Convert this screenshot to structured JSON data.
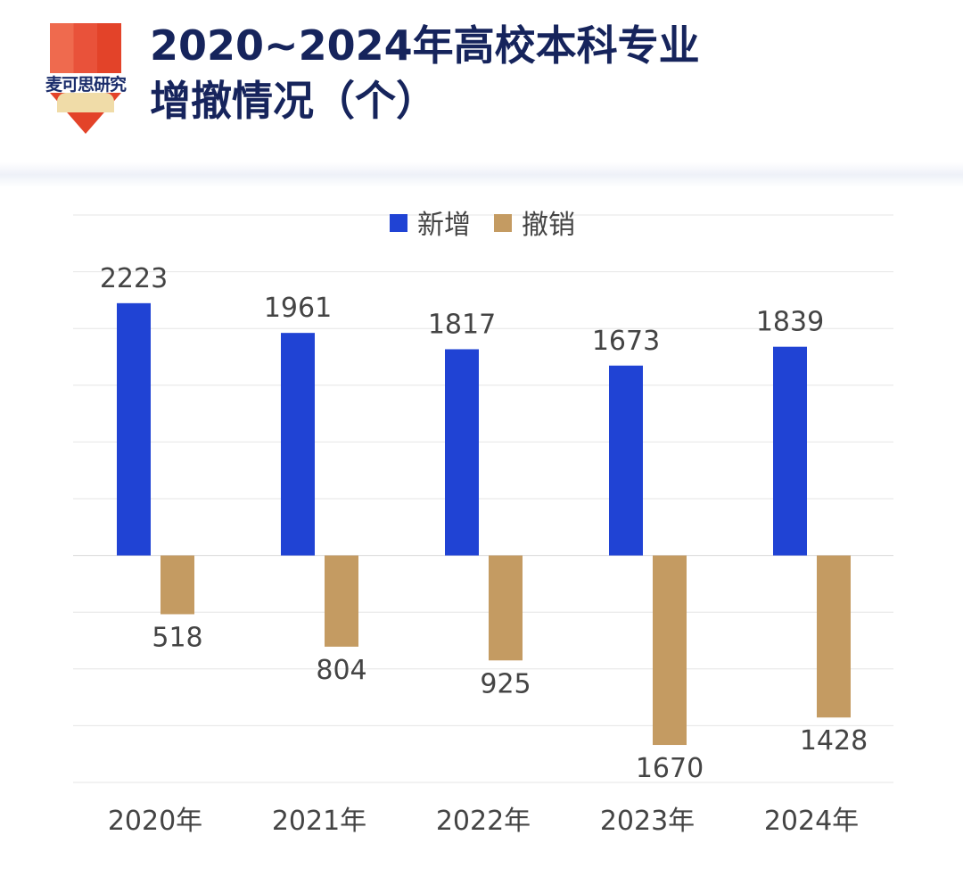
{
  "logo": {
    "text": "麦可思研究"
  },
  "header": {
    "title_line1": "2020~2024年高校本科专业",
    "title_line2": "增撤情况（个）"
  },
  "colors": {
    "added": "#2043d4",
    "removed": "#c49b62",
    "grid": "#e6e6e6",
    "title": "#16245c"
  },
  "chart_data": {
    "type": "bar",
    "title": "2020~2024年高校本科专业增撤情况（个）",
    "categories": [
      "2020年",
      "2021年",
      "2022年",
      "2023年",
      "2024年"
    ],
    "series": [
      {
        "name": "新增",
        "values": [
          2223,
          1961,
          1817,
          1673,
          1839
        ],
        "display_sign": 1
      },
      {
        "name": "撤销",
        "values": [
          518,
          804,
          925,
          1670,
          1428
        ],
        "display_sign": -1
      }
    ],
    "ylim": [
      -2000,
      3000
    ],
    "ytick_step": 500,
    "grid": true,
    "legend": "top-center",
    "xlabel": "",
    "ylabel": ""
  }
}
